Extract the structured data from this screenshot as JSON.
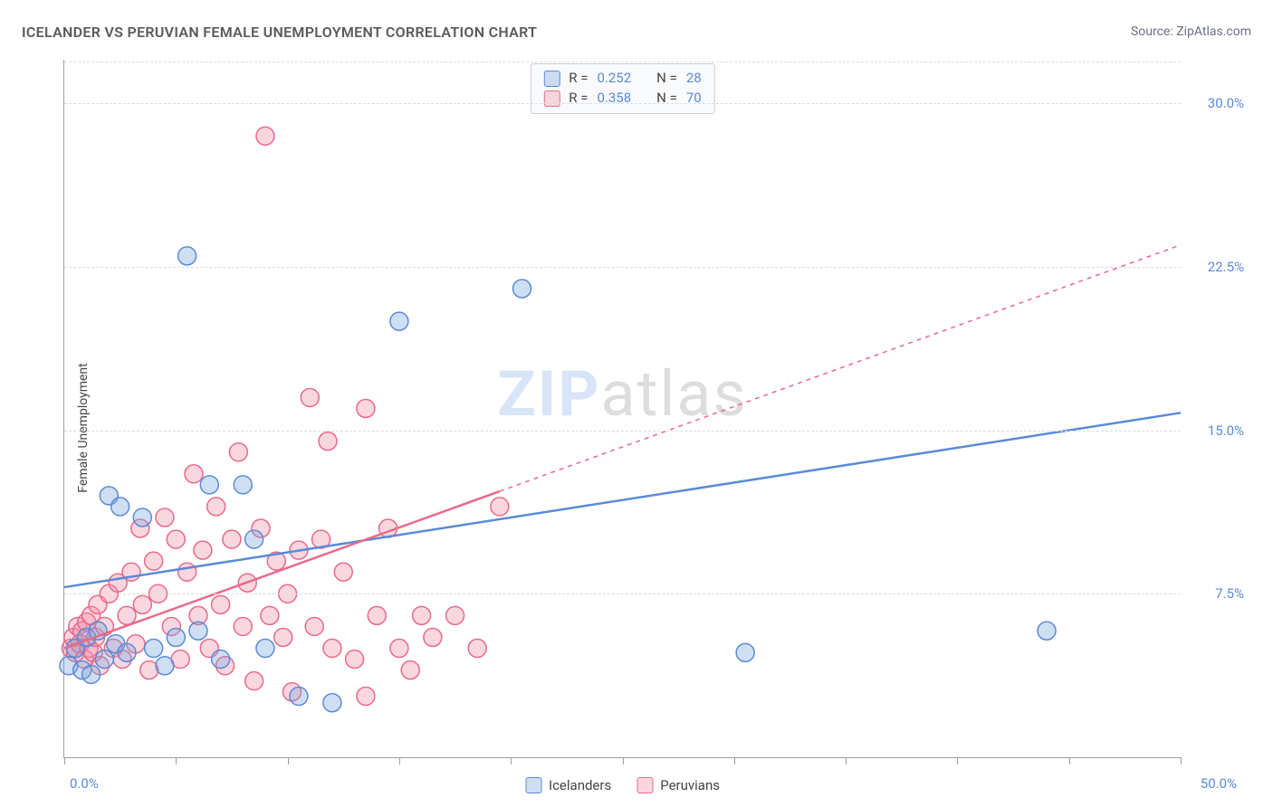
{
  "title": "ICELANDER VS PERUVIAN FEMALE UNEMPLOYMENT CORRELATION CHART",
  "source": "Source: ZipAtlas.com",
  "ylabel": "Female Unemployment",
  "watermark_a": "ZIP",
  "watermark_b": "atlas",
  "chart": {
    "type": "scatter",
    "background_color": "#ffffff",
    "grid_color": "#d9dde1",
    "axis_color": "#9aa0a6",
    "tick_label_color": "#5b8ad6",
    "xlim": [
      0,
      50
    ],
    "ylim": [
      0,
      32
    ],
    "xticks": [
      0,
      5,
      10,
      15,
      20,
      25,
      30,
      35,
      40,
      45,
      50
    ],
    "xtick_labels": {
      "0": "0.0%",
      "50": "50.0%"
    },
    "yticks": [
      7.5,
      15.0,
      22.5,
      30.0
    ],
    "ytick_labels": [
      "7.5%",
      "15.0%",
      "22.5%",
      "30.0%"
    ],
    "marker_radius": 10,
    "marker_stroke_width": 1.5,
    "marker_fill_opacity": 0.35,
    "series": [
      {
        "key": "icelanders",
        "label": "Icelanders",
        "r_value": "0.252",
        "n_value": "28",
        "color": "#5b8ad6",
        "fill": "rgba(118,163,222,0.35)",
        "points": [
          [
            0.2,
            4.2
          ],
          [
            0.5,
            5.0
          ],
          [
            0.8,
            4.0
          ],
          [
            1.0,
            5.5
          ],
          [
            1.2,
            3.8
          ],
          [
            1.5,
            5.8
          ],
          [
            1.8,
            4.5
          ],
          [
            2.0,
            12.0
          ],
          [
            2.3,
            5.2
          ],
          [
            2.5,
            11.5
          ],
          [
            2.8,
            4.8
          ],
          [
            3.5,
            11.0
          ],
          [
            4.0,
            5.0
          ],
          [
            4.5,
            4.2
          ],
          [
            5.0,
            5.5
          ],
          [
            5.5,
            23.0
          ],
          [
            6.0,
            5.8
          ],
          [
            6.5,
            12.5
          ],
          [
            7.0,
            4.5
          ],
          [
            8.0,
            12.5
          ],
          [
            8.5,
            10.0
          ],
          [
            9.0,
            5.0
          ],
          [
            10.5,
            2.8
          ],
          [
            12.0,
            2.5
          ],
          [
            15.0,
            20.0
          ],
          [
            20.5,
            21.5
          ],
          [
            30.5,
            4.8
          ],
          [
            44.0,
            5.8
          ]
        ],
        "trend": {
          "solid_from": [
            0,
            7.8
          ],
          "solid_to": [
            50,
            15.8
          ],
          "line_width": 2.5
        }
      },
      {
        "key": "peruvians",
        "label": "Peruvians",
        "r_value": "0.358",
        "n_value": "70",
        "color": "#e86a8a",
        "fill": "rgba(240,140,165,0.35)",
        "points": [
          [
            0.3,
            5.0
          ],
          [
            0.4,
            5.5
          ],
          [
            0.5,
            4.8
          ],
          [
            0.6,
            6.0
          ],
          [
            0.7,
            5.2
          ],
          [
            0.8,
            5.8
          ],
          [
            0.9,
            4.5
          ],
          [
            1.0,
            6.2
          ],
          [
            1.1,
            5.0
          ],
          [
            1.2,
            6.5
          ],
          [
            1.3,
            4.8
          ],
          [
            1.4,
            5.5
          ],
          [
            1.5,
            7.0
          ],
          [
            1.6,
            4.2
          ],
          [
            1.8,
            6.0
          ],
          [
            2.0,
            7.5
          ],
          [
            2.2,
            5.0
          ],
          [
            2.4,
            8.0
          ],
          [
            2.6,
            4.5
          ],
          [
            2.8,
            6.5
          ],
          [
            3.0,
            8.5
          ],
          [
            3.2,
            5.2
          ],
          [
            3.4,
            10.5
          ],
          [
            3.5,
            7.0
          ],
          [
            3.8,
            4.0
          ],
          [
            4.0,
            9.0
          ],
          [
            4.2,
            7.5
          ],
          [
            4.5,
            11.0
          ],
          [
            4.8,
            6.0
          ],
          [
            5.0,
            10.0
          ],
          [
            5.2,
            4.5
          ],
          [
            5.5,
            8.5
          ],
          [
            5.8,
            13.0
          ],
          [
            6.0,
            6.5
          ],
          [
            6.2,
            9.5
          ],
          [
            6.5,
            5.0
          ],
          [
            6.8,
            11.5
          ],
          [
            7.0,
            7.0
          ],
          [
            7.2,
            4.2
          ],
          [
            7.5,
            10.0
          ],
          [
            7.8,
            14.0
          ],
          [
            8.0,
            6.0
          ],
          [
            8.2,
            8.0
          ],
          [
            8.5,
            3.5
          ],
          [
            8.8,
            10.5
          ],
          [
            9.0,
            28.5
          ],
          [
            9.2,
            6.5
          ],
          [
            9.5,
            9.0
          ],
          [
            9.8,
            5.5
          ],
          [
            10.0,
            7.5
          ],
          [
            10.2,
            3.0
          ],
          [
            10.5,
            9.5
          ],
          [
            11.0,
            16.5
          ],
          [
            11.2,
            6.0
          ],
          [
            11.5,
            10.0
          ],
          [
            11.8,
            14.5
          ],
          [
            12.0,
            5.0
          ],
          [
            12.5,
            8.5
          ],
          [
            13.0,
            4.5
          ],
          [
            13.5,
            16.0
          ],
          [
            14.0,
            6.5
          ],
          [
            14.5,
            10.5
          ],
          [
            15.0,
            5.0
          ],
          [
            15.5,
            4.0
          ],
          [
            16.0,
            6.5
          ],
          [
            16.5,
            5.5
          ],
          [
            17.5,
            6.5
          ],
          [
            18.5,
            5.0
          ],
          [
            19.5,
            11.5
          ],
          [
            13.5,
            2.8
          ]
        ],
        "trend": {
          "solid_from": [
            0,
            5.0
          ],
          "solid_to": [
            19.5,
            12.2
          ],
          "dash_to": [
            50,
            23.5
          ],
          "line_width": 2.5
        }
      }
    ]
  },
  "legend_top_rows": [
    {
      "swatch": "icelanders",
      "r": "0.252",
      "n": "28"
    },
    {
      "swatch": "peruvians",
      "r": "0.358",
      "n": "70"
    }
  ],
  "legend_r_label": "R = ",
  "legend_n_label": "N = "
}
